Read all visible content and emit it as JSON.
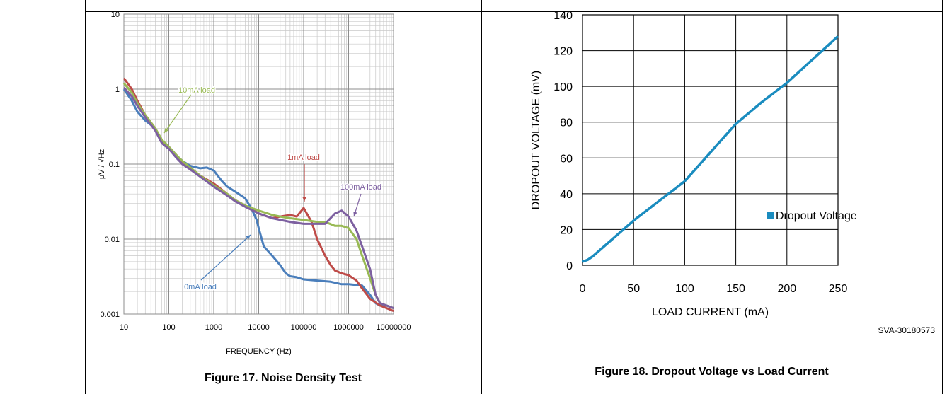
{
  "chart_data": [
    {
      "type": "line",
      "title": "",
      "xlabel": "FREQUENCY (Hz)",
      "ylabel": "μV / √Hz",
      "x_scale": "log",
      "y_scale": "log",
      "xlim": [
        10,
        10000000
      ],
      "ylim": [
        0.001,
        10
      ],
      "x_ticks": [
        "10",
        "100",
        "1000",
        "10000",
        "100000",
        "1000000",
        "10000000"
      ],
      "y_ticks": [
        "0.001",
        "0.01",
        "0.1",
        "1",
        "10"
      ],
      "grid": true,
      "series": [
        {
          "name": "0mA load",
          "color": "#4a7ebb",
          "points": [
            [
              10,
              1.0
            ],
            [
              15,
              0.7
            ],
            [
              20,
              0.5
            ],
            [
              30,
              0.38
            ],
            [
              50,
              0.3
            ],
            [
              70,
              0.2
            ],
            [
              100,
              0.17
            ],
            [
              150,
              0.13
            ],
            [
              200,
              0.11
            ],
            [
              300,
              0.095
            ],
            [
              500,
              0.088
            ],
            [
              700,
              0.09
            ],
            [
              1000,
              0.082
            ],
            [
              1500,
              0.06
            ],
            [
              2000,
              0.05
            ],
            [
              3000,
              0.043
            ],
            [
              5000,
              0.035
            ],
            [
              7000,
              0.025
            ],
            [
              9000,
              0.018
            ],
            [
              10000,
              0.014
            ],
            [
              13000,
              0.008
            ],
            [
              20000,
              0.006
            ],
            [
              30000,
              0.0045
            ],
            [
              40000,
              0.0035
            ],
            [
              50000,
              0.0032
            ],
            [
              70000,
              0.0031
            ],
            [
              100000,
              0.0029
            ],
            [
              200000,
              0.0028
            ],
            [
              400000,
              0.0027
            ],
            [
              700000,
              0.0025
            ],
            [
              1000000,
              0.0025
            ],
            [
              2000000,
              0.0024
            ],
            [
              3000000,
              0.0018
            ],
            [
              4000000,
              0.0014
            ],
            [
              5000000,
              0.0013
            ],
            [
              7000000,
              0.0013
            ],
            [
              10000000,
              0.0012
            ]
          ]
        },
        {
          "name": "1mA load",
          "color": "#be4b48",
          "points": [
            [
              10,
              1.4
            ],
            [
              15,
              1.0
            ],
            [
              20,
              0.7
            ],
            [
              30,
              0.45
            ],
            [
              50,
              0.3
            ],
            [
              70,
              0.2
            ],
            [
              100,
              0.17
            ],
            [
              150,
              0.13
            ],
            [
              200,
              0.1
            ],
            [
              300,
              0.09
            ],
            [
              500,
              0.07
            ],
            [
              1000,
              0.055
            ],
            [
              2000,
              0.04
            ],
            [
              3000,
              0.033
            ],
            [
              5000,
              0.028
            ],
            [
              10000,
              0.022
            ],
            [
              20000,
              0.019
            ],
            [
              30000,
              0.02
            ],
            [
              50000,
              0.021
            ],
            [
              70000,
              0.02
            ],
            [
              100000,
              0.026
            ],
            [
              150000,
              0.017
            ],
            [
              200000,
              0.01
            ],
            [
              300000,
              0.006
            ],
            [
              400000,
              0.0045
            ],
            [
              500000,
              0.0038
            ],
            [
              700000,
              0.0035
            ],
            [
              1000000,
              0.0033
            ],
            [
              1500000,
              0.0028
            ],
            [
              2000000,
              0.0022
            ],
            [
              3000000,
              0.0016
            ],
            [
              5000000,
              0.0013
            ],
            [
              10000000,
              0.0011
            ]
          ]
        },
        {
          "name": "10mA load",
          "color": "#98b954",
          "points": [
            [
              10,
              1.2
            ],
            [
              15,
              0.9
            ],
            [
              20,
              0.65
            ],
            [
              30,
              0.45
            ],
            [
              50,
              0.3
            ],
            [
              70,
              0.21
            ],
            [
              100,
              0.17
            ],
            [
              150,
              0.13
            ],
            [
              200,
              0.11
            ],
            [
              300,
              0.09
            ],
            [
              500,
              0.07
            ],
            [
              1000,
              0.052
            ],
            [
              2000,
              0.04
            ],
            [
              3000,
              0.033
            ],
            [
              5000,
              0.028
            ],
            [
              10000,
              0.024
            ],
            [
              20000,
              0.021
            ],
            [
              30000,
              0.02
            ],
            [
              50000,
              0.019
            ],
            [
              100000,
              0.018
            ],
            [
              200000,
              0.017
            ],
            [
              300000,
              0.017
            ],
            [
              500000,
              0.015
            ],
            [
              700000,
              0.015
            ],
            [
              1000000,
              0.014
            ],
            [
              1500000,
              0.01
            ],
            [
              2000000,
              0.006
            ],
            [
              3000000,
              0.003
            ],
            [
              4000000,
              0.0018
            ],
            [
              5000000,
              0.0014
            ],
            [
              10000000,
              0.0012
            ]
          ]
        },
        {
          "name": "100mA load",
          "color": "#7d60a0",
          "points": [
            [
              10,
              1.05
            ],
            [
              15,
              0.8
            ],
            [
              20,
              0.6
            ],
            [
              30,
              0.42
            ],
            [
              50,
              0.28
            ],
            [
              70,
              0.19
            ],
            [
              100,
              0.16
            ],
            [
              150,
              0.12
            ],
            [
              200,
              0.1
            ],
            [
              300,
              0.085
            ],
            [
              500,
              0.068
            ],
            [
              1000,
              0.05
            ],
            [
              2000,
              0.038
            ],
            [
              3000,
              0.032
            ],
            [
              5000,
              0.027
            ],
            [
              10000,
              0.022
            ],
            [
              20000,
              0.019
            ],
            [
              50000,
              0.017
            ],
            [
              100000,
              0.016
            ],
            [
              200000,
              0.016
            ],
            [
              300000,
              0.016
            ],
            [
              500000,
              0.022
            ],
            [
              700000,
              0.024
            ],
            [
              1000000,
              0.02
            ],
            [
              1500000,
              0.013
            ],
            [
              2000000,
              0.008
            ],
            [
              3000000,
              0.004
            ],
            [
              4000000,
              0.0018
            ],
            [
              5000000,
              0.0014
            ],
            [
              10000000,
              0.0012
            ]
          ]
        }
      ],
      "annotations": [
        {
          "text": "10mA load",
          "color": "#98b954"
        },
        {
          "text": "1mA load",
          "color": "#be4b48"
        },
        {
          "text": "100mA load",
          "color": "#7d60a0"
        },
        {
          "text": "0mA load",
          "color": "#4a7ebb"
        }
      ],
      "caption": "Figure 17. Noise Density Test"
    },
    {
      "type": "line",
      "title": "",
      "xlabel": "LOAD CURRENT (mA)",
      "ylabel": "DROPOUT VOLTAGE (mV)",
      "xlim": [
        0,
        250
      ],
      "ylim": [
        0,
        140
      ],
      "x_ticks": [
        "0",
        "50",
        "100",
        "150",
        "200",
        "250"
      ],
      "y_ticks": [
        "0",
        "20",
        "40",
        "60",
        "80",
        "100",
        "120",
        "140"
      ],
      "grid": true,
      "legend_position": "bottom-right",
      "series": [
        {
          "name": "Dropout Voltage",
          "color": "#1a8cbf",
          "points": [
            [
              0,
              2
            ],
            [
              5,
              3
            ],
            [
              10,
              5
            ],
            [
              20,
              10
            ],
            [
              30,
              15
            ],
            [
              50,
              25
            ],
            [
              75,
              36
            ],
            [
              100,
              47
            ],
            [
              125,
              63
            ],
            [
              150,
              79
            ],
            [
              175,
              91
            ],
            [
              200,
              102
            ],
            [
              225,
              115
            ],
            [
              250,
              128
            ]
          ]
        }
      ],
      "code": "SVA-30180573",
      "caption": "Figure 18. Dropout Voltage vs Load Current"
    }
  ]
}
